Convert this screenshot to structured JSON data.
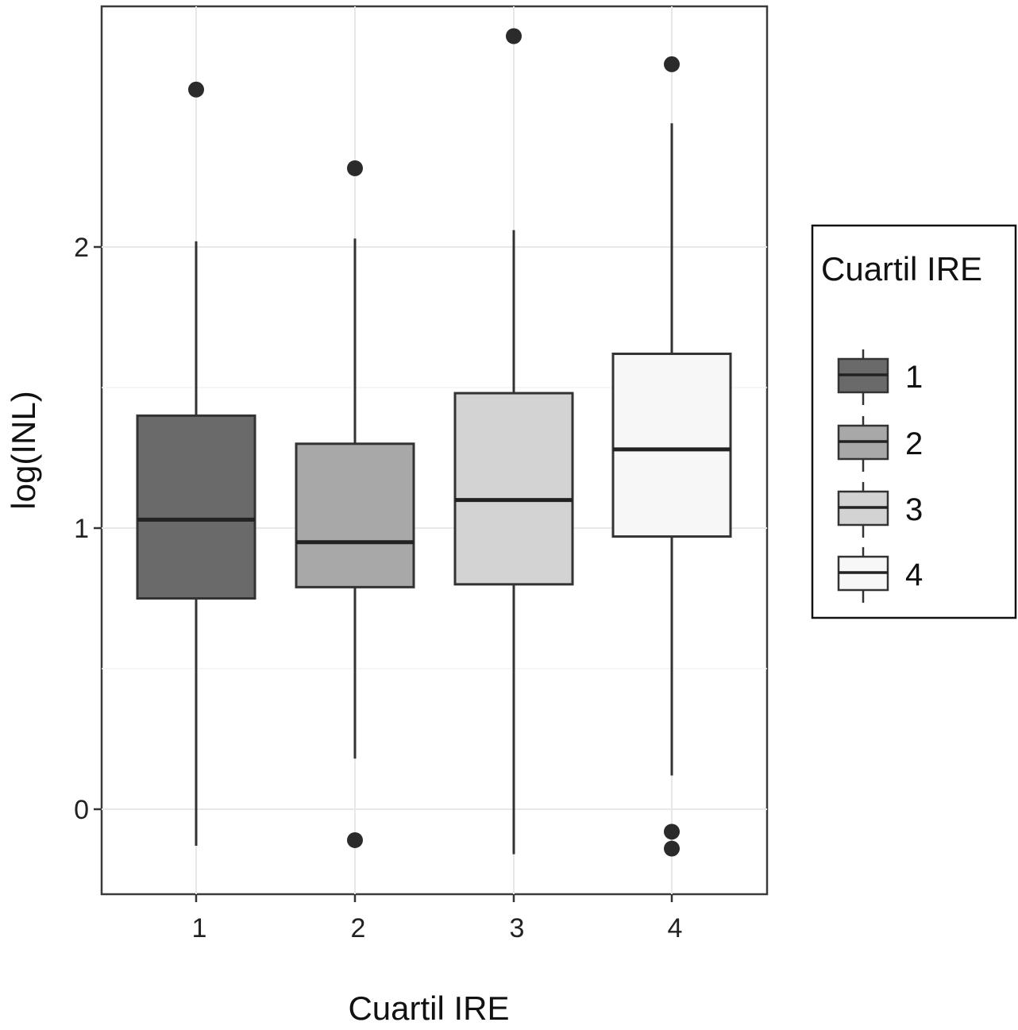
{
  "chart_data": {
    "type": "boxplot",
    "title": "",
    "xlabel": "Cuartil IRE",
    "ylabel": "log(INL)",
    "categories": [
      "1",
      "2",
      "3",
      "4"
    ],
    "y_ticks": [
      0,
      1,
      2
    ],
    "y_tick_labels": [
      "0",
      "1",
      "2"
    ],
    "ylim": [
      -0.3,
      2.85
    ],
    "grid": true,
    "legend": {
      "title": "Cuartil IRE",
      "placement": "right",
      "entries": [
        "1",
        "2",
        "3",
        "4"
      ]
    },
    "series": [
      {
        "category": "1",
        "color": "#6a6a6a",
        "whisker_low": -0.13,
        "q1": 0.75,
        "median": 1.03,
        "q3": 1.4,
        "whisker_high": 2.02,
        "outliers": [
          2.56
        ]
      },
      {
        "category": "2",
        "color": "#a8a8a8",
        "whisker_low": 0.18,
        "q1": 0.79,
        "median": 0.95,
        "q3": 1.3,
        "whisker_high": 2.03,
        "outliers": [
          2.28,
          -0.11
        ]
      },
      {
        "category": "3",
        "color": "#d3d3d3",
        "whisker_low": -0.16,
        "q1": 0.8,
        "median": 1.1,
        "q3": 1.48,
        "whisker_high": 2.06,
        "outliers": [
          2.75
        ]
      },
      {
        "category": "4",
        "color": "#f7f7f7",
        "whisker_low": 0.12,
        "q1": 0.97,
        "median": 1.28,
        "q3": 1.62,
        "whisker_high": 2.44,
        "outliers": [
          2.65,
          -0.08,
          -0.14
        ]
      }
    ]
  }
}
